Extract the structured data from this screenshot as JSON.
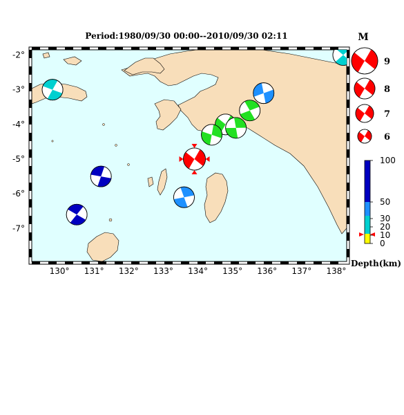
{
  "title": "Period:1980/09/30 00:00--2010/09/30 02:11",
  "colors": {
    "ocean": "#e0ffff",
    "land": "#f8deba",
    "focus_event": "#ff0000",
    "shallow": "#00d0d0",
    "light_blue": "#1e90ff",
    "green": "#22e022",
    "deep_blue": "#0000c0",
    "yellow": "#ffff00"
  },
  "axes": {
    "x_ticks": [
      "130°",
      "131°",
      "132°",
      "133°",
      "134°",
      "135°",
      "136°",
      "137°",
      "138°"
    ],
    "y_ticks": [
      "-2°",
      "-3°",
      "-4°",
      "-5°",
      "-6°",
      "-7°"
    ]
  },
  "events": [
    {
      "id": "north-east-edge",
      "color": "shallow",
      "lon": 138.2,
      "lat": -2.0
    },
    {
      "id": "seram",
      "color": "shallow",
      "lon": 129.8,
      "lat": -3.0
    },
    {
      "id": "bintuni-coast",
      "color": "light_blue",
      "lon": 135.9,
      "lat": -3.1
    },
    {
      "id": "green-cluster-1",
      "color": "green",
      "lon": 135.5,
      "lat": -3.6
    },
    {
      "id": "green-cluster-2",
      "color": "green",
      "lon": 134.8,
      "lat": -4.0
    },
    {
      "id": "green-cluster-3",
      "color": "green",
      "lon": 135.1,
      "lat": -4.1
    },
    {
      "id": "green-cluster-4",
      "color": "green",
      "lon": 134.4,
      "lat": -4.3
    },
    {
      "id": "focus-event",
      "color": "focus_event",
      "lon": 133.9,
      "lat": -5.0
    },
    {
      "id": "arafura-1",
      "color": "deep_blue",
      "lon": 131.2,
      "lat": -5.5
    },
    {
      "id": "arafura-2",
      "color": "light_blue",
      "lon": 133.6,
      "lat": -6.1
    },
    {
      "id": "arafura-3",
      "color": "deep_blue",
      "lon": 130.5,
      "lat": -6.6
    }
  ],
  "legend": {
    "title": "M",
    "magnitudes": [
      "9",
      "8",
      "7",
      "6"
    ]
  },
  "colorbar": {
    "labels": [
      "100",
      "50",
      "30",
      "20",
      "10",
      "0"
    ],
    "title": "Depth(km)"
  }
}
